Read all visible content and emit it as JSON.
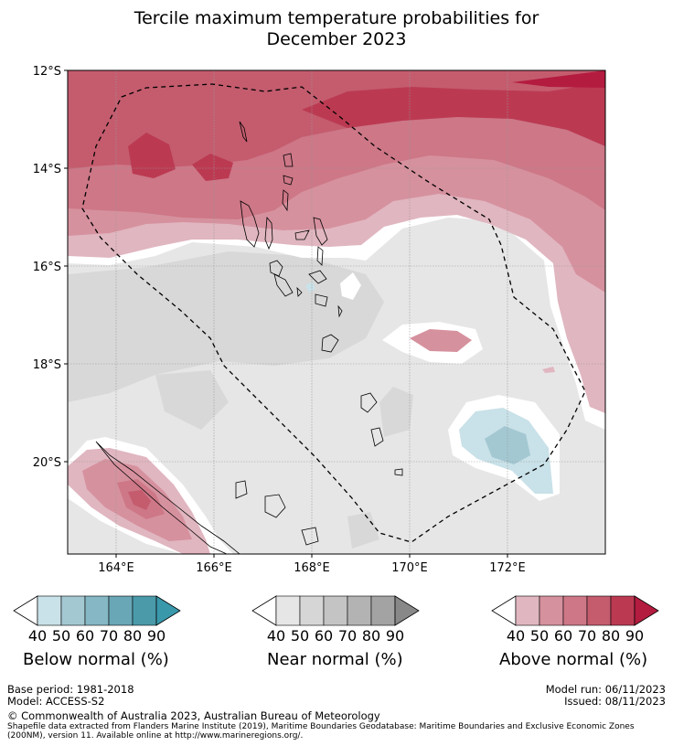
{
  "title": {
    "line1": "Tercile maximum temperature probabilities for",
    "line2": "December 2023"
  },
  "map": {
    "lat_labels": [
      "12°S",
      "14°S",
      "16°S",
      "18°S",
      "20°S"
    ],
    "lon_labels": [
      "164°E",
      "166°E",
      "168°E",
      "170°E",
      "172°E"
    ]
  },
  "colorbars": [
    {
      "label": "Below normal (%)",
      "ticks": [
        "40",
        "50",
        "60",
        "70",
        "80",
        "90"
      ],
      "colors": [
        "#c9e1e8",
        "#a3c8d2",
        "#85b7c4",
        "#69a7b7",
        "#4a9aaa",
        "#3a98ab"
      ]
    },
    {
      "label": "Near normal (%)",
      "ticks": [
        "40",
        "50",
        "60",
        "70",
        "80",
        "90"
      ],
      "colors": [
        "#e6e6e6",
        "#d6d6d6",
        "#c4c4c4",
        "#b3b3b3",
        "#a3a3a3",
        "#888888"
      ]
    },
    {
      "label": "Above normal (%)",
      "ticks": [
        "40",
        "50",
        "60",
        "70",
        "80",
        "90"
      ],
      "colors": [
        "#e0b6c0",
        "#d6919e",
        "#cd7787",
        "#c45c6e",
        "#bb3a52",
        "#b41c3f"
      ]
    }
  ],
  "footer": {
    "base_period": "Base period: 1981-2018",
    "model": "Model: ACCESS-S2",
    "model_run": "Model run: 06/11/2023",
    "issued": "Issued: 08/11/2023",
    "copyright": "© Commonwealth of Australia 2023, Australian Bureau of Meteorology",
    "shapefile_line1": "Shapefile data extracted from Flanders Marine Institute (2019), Maritime Boundaries Geodatabase: Maritime Boundaries and Exclusive Economic Zones",
    "shapefile_line2": "(200NM), version 11. Available online at http://www.marineregions.org/."
  }
}
